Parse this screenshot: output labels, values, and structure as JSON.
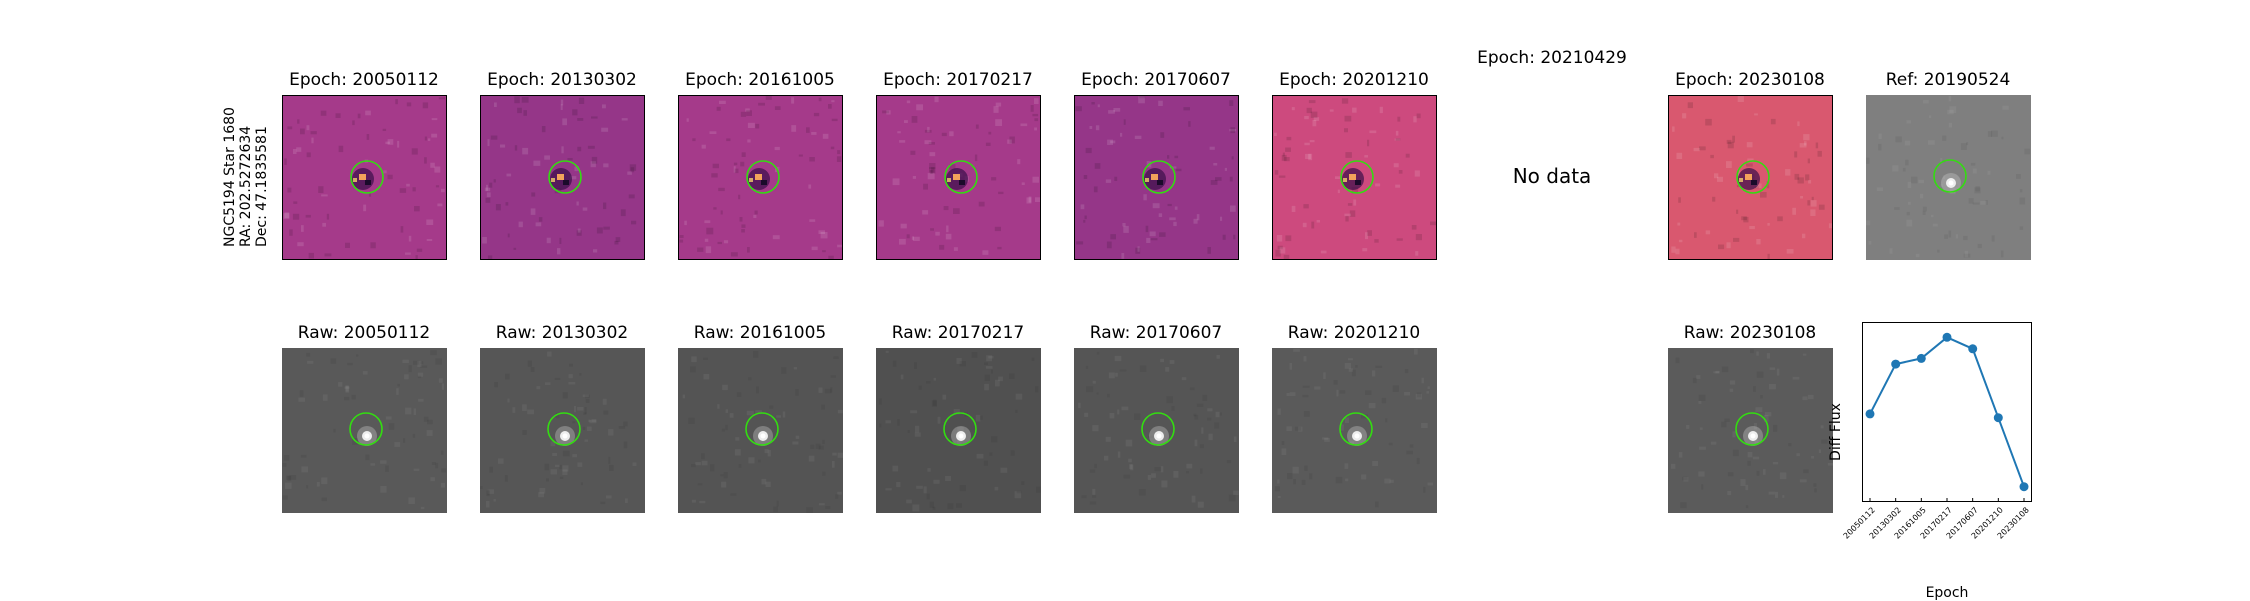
{
  "header": {
    "star_line": "NGC5194 Star 1680",
    "ra_line": "RA: 202.5272634",
    "dec_line": "Dec: 47.1835581"
  },
  "diff_row": [
    {
      "label": "Epoch: 20050112",
      "tone": "magenta"
    },
    {
      "label": "Epoch: 20130302",
      "tone": "purple"
    },
    {
      "label": "Epoch: 20161005",
      "tone": "magenta"
    },
    {
      "label": "Epoch: 20170217",
      "tone": "magenta"
    },
    {
      "label": "Epoch: 20170607",
      "tone": "purple"
    },
    {
      "label": "Epoch: 20201210",
      "tone": "pink"
    },
    {
      "label": "Epoch: 20210429",
      "nodata": "No data"
    },
    {
      "label": "Epoch: 20230108",
      "tone": "orange"
    },
    {
      "label": "Ref: 20190524",
      "tone": "gray"
    }
  ],
  "raw_row": [
    {
      "label": "Raw: 20050112",
      "shade": "#595959"
    },
    {
      "label": "Raw: 20130302",
      "shade": "#565656"
    },
    {
      "label": "Raw: 20161005",
      "shade": "#545454"
    },
    {
      "label": "Raw: 20170217",
      "shade": "#505050"
    },
    {
      "label": "Raw: 20170607",
      "shade": "#555555"
    },
    {
      "label": "Raw: 20201210",
      "shade": "#5a5a5a"
    },
    {
      "label": "Raw: 20230108",
      "shade": "#5b5b5b"
    }
  ],
  "colors": {
    "magenta": "#a53a8a",
    "purple": "#953688",
    "pink": "#cd4a7e",
    "orange": "#d9586f",
    "gray": "#7f7f7f",
    "circle": "#33dd11",
    "series": "#1f77b4"
  },
  "chart_data": {
    "type": "line",
    "xlabel": "Epoch",
    "ylabel": "Diff Flux",
    "x": [
      "20050112",
      "20130302",
      "20161005",
      "20170217",
      "20170607",
      "20201210",
      "20230108"
    ],
    "series": [
      {
        "values": [
          0.46,
          0.72,
          0.75,
          0.86,
          0.8,
          0.44,
          0.08
        ]
      }
    ],
    "ylim": [
      0.0,
      0.94
    ],
    "grid": false
  }
}
